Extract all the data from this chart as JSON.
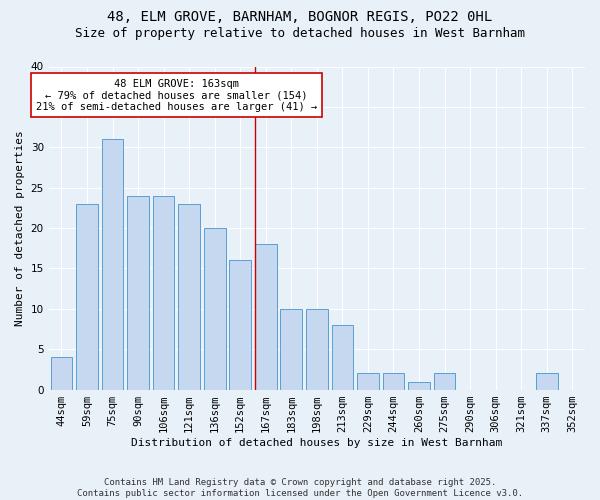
{
  "title1": "48, ELM GROVE, BARNHAM, BOGNOR REGIS, PO22 0HL",
  "title2": "Size of property relative to detached houses in West Barnham",
  "xlabel": "Distribution of detached houses by size in West Barnham",
  "ylabel": "Number of detached properties",
  "footer": "Contains HM Land Registry data © Crown copyright and database right 2025.\nContains public sector information licensed under the Open Government Licence v3.0.",
  "categories": [
    "44sqm",
    "59sqm",
    "75sqm",
    "90sqm",
    "106sqm",
    "121sqm",
    "136sqm",
    "152sqm",
    "167sqm",
    "183sqm",
    "198sqm",
    "213sqm",
    "229sqm",
    "244sqm",
    "260sqm",
    "275sqm",
    "290sqm",
    "306sqm",
    "321sqm",
    "337sqm",
    "352sqm"
  ],
  "values": [
    4,
    23,
    31,
    24,
    24,
    23,
    20,
    16,
    18,
    10,
    10,
    8,
    2,
    2,
    1,
    2,
    0,
    0,
    0,
    2,
    0
  ],
  "bar_color": "#c5d8f0",
  "bar_edge_color": "#5a9fd4",
  "highlight_bar_index": 8,
  "highlight_line_color": "#cc0000",
  "annotation_text": "48 ELM GROVE: 163sqm\n← 79% of detached houses are smaller (154)\n21% of semi-detached houses are larger (41) →",
  "annotation_box_color": "#ffffff",
  "annotation_box_edge_color": "#cc0000",
  "ylim": [
    0,
    40
  ],
  "yticks": [
    0,
    5,
    10,
    15,
    20,
    25,
    30,
    35,
    40
  ],
  "bg_color": "#e8f0f8",
  "grid_color": "#ffffff",
  "title_fontsize": 10,
  "subtitle_fontsize": 9,
  "axis_label_fontsize": 8,
  "tick_fontsize": 7.5,
  "annotation_fontsize": 7.5,
  "footer_fontsize": 6.5
}
